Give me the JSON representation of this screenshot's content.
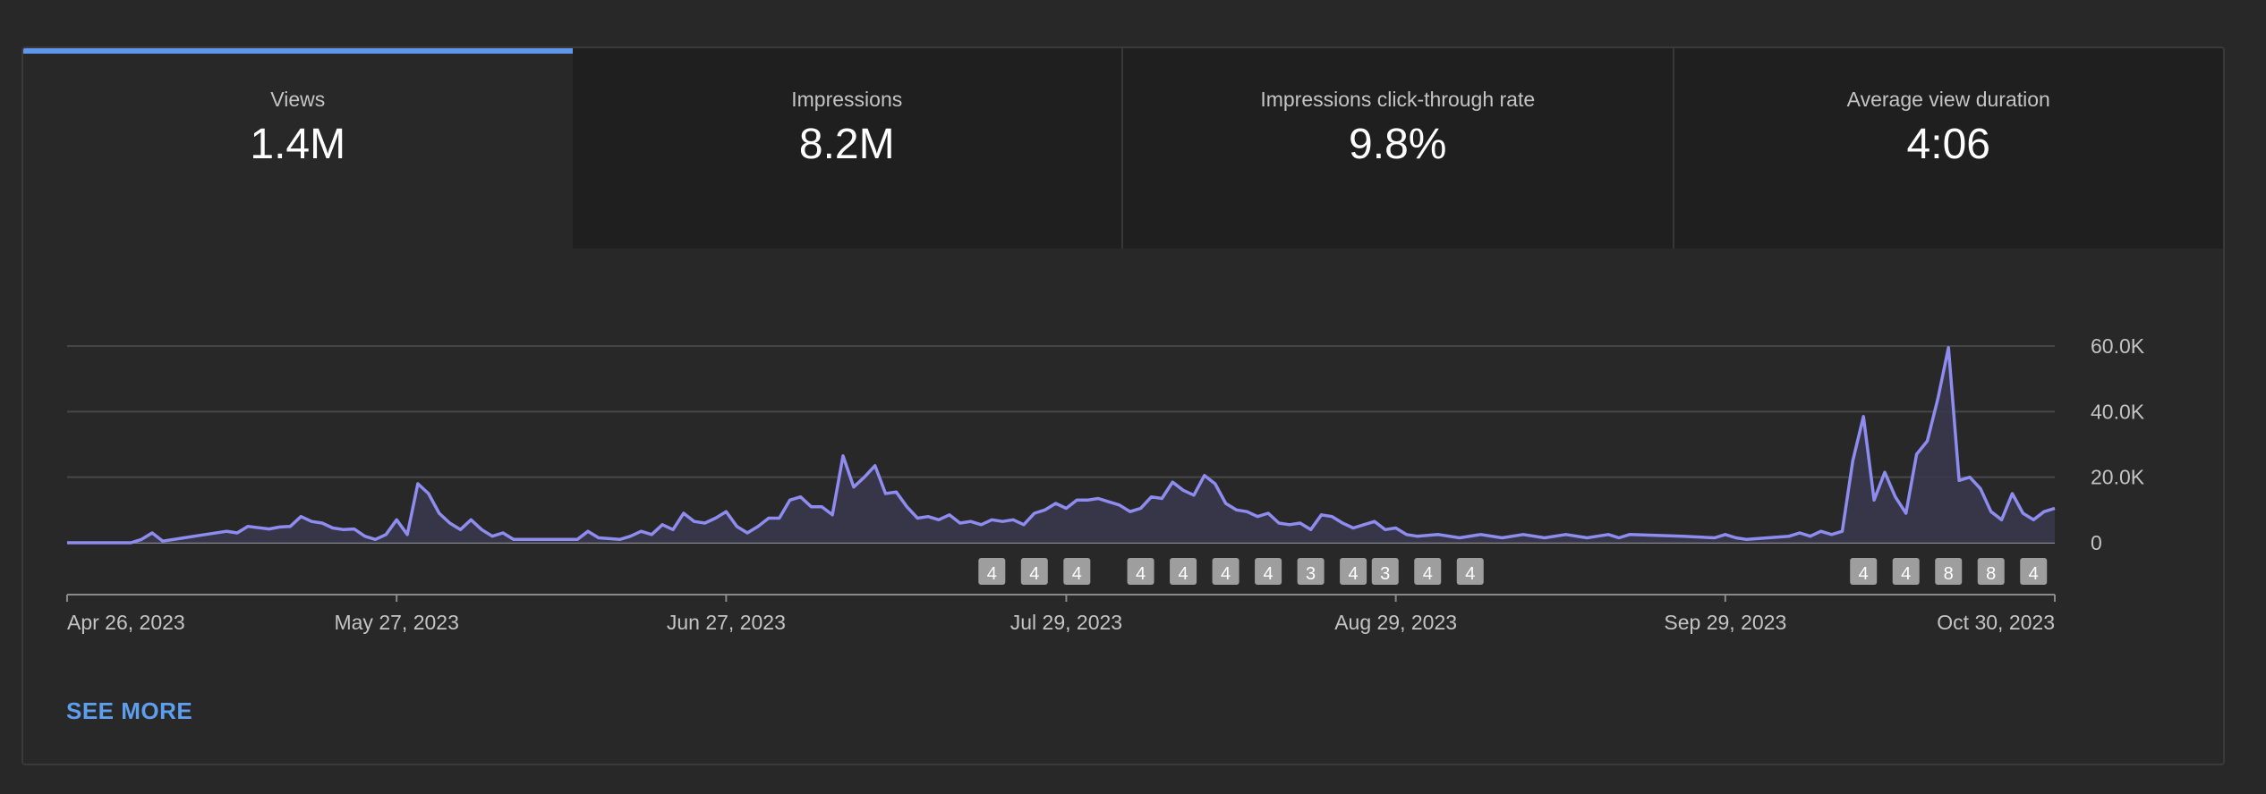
{
  "tabs": [
    {
      "label": "Views",
      "value": "1.4M",
      "active": true
    },
    {
      "label": "Impressions",
      "value": "8.2M",
      "active": false
    },
    {
      "label": "Impressions click-through rate",
      "value": "9.8%",
      "active": false
    },
    {
      "label": "Average view duration",
      "value": "4:06",
      "active": false
    }
  ],
  "see_more": "SEE MORE",
  "colors": {
    "line": "#8f8cf0",
    "fill": "#38384e",
    "accent": "#5f97ea",
    "grid": "#474747",
    "marker_bg": "#9e9e9e"
  },
  "chart_data": {
    "type": "line",
    "ylim": [
      0,
      60000
    ],
    "yticks": [
      {
        "value": 0,
        "label": "0"
      },
      {
        "value": 20000,
        "label": "20.0K"
      },
      {
        "value": 40000,
        "label": "40.0K"
      },
      {
        "value": 60000,
        "label": "60.0K"
      }
    ],
    "xrange": [
      "2023-04-26",
      "2023-10-30"
    ],
    "xticks": [
      {
        "date": "2023-04-26",
        "label": "Apr 26, 2023"
      },
      {
        "date": "2023-05-27",
        "label": "May 27, 2023"
      },
      {
        "date": "2023-06-27",
        "label": "Jun 27, 2023"
      },
      {
        "date": "2023-07-29",
        "label": "Jul 29, 2023"
      },
      {
        "date": "2023-08-29",
        "label": "Aug 29, 2023"
      },
      {
        "date": "2023-09-29",
        "label": "Sep 29, 2023"
      },
      {
        "date": "2023-10-30",
        "label": "Oct 30, 2023"
      }
    ],
    "series": [
      {
        "points": [
          [
            "2023-04-26",
            0
          ],
          [
            "2023-05-02",
            0
          ],
          [
            "2023-05-03",
            1000
          ],
          [
            "2023-05-04",
            3000
          ],
          [
            "2023-05-05",
            500
          ],
          [
            "2023-05-07",
            1500
          ],
          [
            "2023-05-09",
            2500
          ],
          [
            "2023-05-11",
            3500
          ],
          [
            "2023-05-12",
            3000
          ],
          [
            "2023-05-13",
            5000
          ],
          [
            "2023-05-15",
            4200
          ],
          [
            "2023-05-16",
            4800
          ],
          [
            "2023-05-17",
            5000
          ],
          [
            "2023-05-18",
            8000
          ],
          [
            "2023-05-19",
            6500
          ],
          [
            "2023-05-20",
            6000
          ],
          [
            "2023-05-21",
            4500
          ],
          [
            "2023-05-22",
            4000
          ],
          [
            "2023-05-23",
            4200
          ],
          [
            "2023-05-24",
            2000
          ],
          [
            "2023-05-25",
            1000
          ],
          [
            "2023-05-26",
            2500
          ],
          [
            "2023-05-27",
            7000
          ],
          [
            "2023-05-28",
            2500
          ],
          [
            "2023-05-29",
            18000
          ],
          [
            "2023-05-30",
            15000
          ],
          [
            "2023-05-31",
            9000
          ],
          [
            "2023-06-01",
            6000
          ],
          [
            "2023-06-02",
            4000
          ],
          [
            "2023-06-03",
            7000
          ],
          [
            "2023-06-04",
            4000
          ],
          [
            "2023-06-05",
            2000
          ],
          [
            "2023-06-06",
            3000
          ],
          [
            "2023-06-07",
            1000
          ],
          [
            "2023-06-13",
            1000
          ],
          [
            "2023-06-14",
            3500
          ],
          [
            "2023-06-15",
            1500
          ],
          [
            "2023-06-17",
            1000
          ],
          [
            "2023-06-18",
            2000
          ],
          [
            "2023-06-19",
            3500
          ],
          [
            "2023-06-20",
            2500
          ],
          [
            "2023-06-21",
            5500
          ],
          [
            "2023-06-22",
            4000
          ],
          [
            "2023-06-23",
            9000
          ],
          [
            "2023-06-24",
            6500
          ],
          [
            "2023-06-25",
            6000
          ],
          [
            "2023-06-26",
            7500
          ],
          [
            "2023-06-27",
            9500
          ],
          [
            "2023-06-28",
            5000
          ],
          [
            "2023-06-29",
            3000
          ],
          [
            "2023-06-30",
            5000
          ],
          [
            "2023-07-01",
            7500
          ],
          [
            "2023-07-02",
            7500
          ],
          [
            "2023-07-03",
            13000
          ],
          [
            "2023-07-04",
            14000
          ],
          [
            "2023-07-05",
            11000
          ],
          [
            "2023-07-06",
            11000
          ],
          [
            "2023-07-07",
            8500
          ],
          [
            "2023-07-08",
            26500
          ],
          [
            "2023-07-09",
            17000
          ],
          [
            "2023-07-10",
            20000
          ],
          [
            "2023-07-11",
            23500
          ],
          [
            "2023-07-12",
            15000
          ],
          [
            "2023-07-13",
            15500
          ],
          [
            "2023-07-14",
            11000
          ],
          [
            "2023-07-15",
            7500
          ],
          [
            "2023-07-16",
            8000
          ],
          [
            "2023-07-17",
            7000
          ],
          [
            "2023-07-18",
            8500
          ],
          [
            "2023-07-19",
            6000
          ],
          [
            "2023-07-20",
            6500
          ],
          [
            "2023-07-21",
            5500
          ],
          [
            "2023-07-22",
            7000
          ],
          [
            "2023-07-23",
            6500
          ],
          [
            "2023-07-24",
            7000
          ],
          [
            "2023-07-25",
            5500
          ],
          [
            "2023-07-26",
            9000
          ],
          [
            "2023-07-27",
            10000
          ],
          [
            "2023-07-28",
            12000
          ],
          [
            "2023-07-29",
            10500
          ],
          [
            "2023-07-30",
            13000
          ],
          [
            "2023-07-31",
            13000
          ],
          [
            "2023-08-01",
            13500
          ],
          [
            "2023-08-02",
            12500
          ],
          [
            "2023-08-03",
            11500
          ],
          [
            "2023-08-04",
            9500
          ],
          [
            "2023-08-05",
            10500
          ],
          [
            "2023-08-06",
            14000
          ],
          [
            "2023-08-07",
            13500
          ],
          [
            "2023-08-08",
            18500
          ],
          [
            "2023-08-09",
            16000
          ],
          [
            "2023-08-10",
            14500
          ],
          [
            "2023-08-11",
            20500
          ],
          [
            "2023-08-12",
            18000
          ],
          [
            "2023-08-13",
            12000
          ],
          [
            "2023-08-14",
            10000
          ],
          [
            "2023-08-15",
            9500
          ],
          [
            "2023-08-16",
            8000
          ],
          [
            "2023-08-17",
            9000
          ],
          [
            "2023-08-18",
            6000
          ],
          [
            "2023-08-19",
            5500
          ],
          [
            "2023-08-20",
            6000
          ],
          [
            "2023-08-21",
            4000
          ],
          [
            "2023-08-22",
            8500
          ],
          [
            "2023-08-23",
            8000
          ],
          [
            "2023-08-24",
            6000
          ],
          [
            "2023-08-25",
            4500
          ],
          [
            "2023-08-26",
            5500
          ],
          [
            "2023-08-27",
            6500
          ],
          [
            "2023-08-28",
            4000
          ],
          [
            "2023-08-29",
            4500
          ],
          [
            "2023-08-30",
            2500
          ],
          [
            "2023-08-31",
            2000
          ],
          [
            "2023-09-02",
            2500
          ],
          [
            "2023-09-04",
            1500
          ],
          [
            "2023-09-06",
            2500
          ],
          [
            "2023-09-08",
            1500
          ],
          [
            "2023-09-10",
            2500
          ],
          [
            "2023-09-12",
            1500
          ],
          [
            "2023-09-14",
            2500
          ],
          [
            "2023-09-16",
            1500
          ],
          [
            "2023-09-18",
            2500
          ],
          [
            "2023-09-19",
            1500
          ],
          [
            "2023-09-20",
            2500
          ],
          [
            "2023-09-25",
            2000
          ],
          [
            "2023-09-28",
            1500
          ],
          [
            "2023-09-29",
            2500
          ],
          [
            "2023-09-30",
            1500
          ],
          [
            "2023-10-01",
            1000
          ],
          [
            "2023-10-03",
            1500
          ],
          [
            "2023-10-05",
            2000
          ],
          [
            "2023-10-06",
            3000
          ],
          [
            "2023-10-07",
            2000
          ],
          [
            "2023-10-08",
            3500
          ],
          [
            "2023-10-09",
            2500
          ],
          [
            "2023-10-10",
            3500
          ],
          [
            "2023-10-11",
            25000
          ],
          [
            "2023-10-12",
            38500
          ],
          [
            "2023-10-13",
            13000
          ],
          [
            "2023-10-14",
            21500
          ],
          [
            "2023-10-15",
            14000
          ],
          [
            "2023-10-16",
            9000
          ],
          [
            "2023-10-17",
            27000
          ],
          [
            "2023-10-18",
            31000
          ],
          [
            "2023-10-19",
            44000
          ],
          [
            "2023-10-20",
            59500
          ],
          [
            "2023-10-21",
            19000
          ],
          [
            "2023-10-22",
            20000
          ],
          [
            "2023-10-23",
            16500
          ],
          [
            "2023-10-24",
            9500
          ],
          [
            "2023-10-25",
            7000
          ],
          [
            "2023-10-26",
            15000
          ],
          [
            "2023-10-27",
            9000
          ],
          [
            "2023-10-28",
            7000
          ],
          [
            "2023-10-29",
            9500
          ],
          [
            "2023-10-30",
            10500
          ]
        ]
      }
    ],
    "markers": [
      {
        "date": "2023-07-22",
        "label": "4"
      },
      {
        "date": "2023-07-26",
        "label": "4"
      },
      {
        "date": "2023-07-30",
        "label": "4"
      },
      {
        "date": "2023-08-05",
        "label": "4"
      },
      {
        "date": "2023-08-09",
        "label": "4"
      },
      {
        "date": "2023-08-13",
        "label": "4"
      },
      {
        "date": "2023-08-17",
        "label": "4"
      },
      {
        "date": "2023-08-21",
        "label": "3"
      },
      {
        "date": "2023-08-25",
        "label": "4"
      },
      {
        "date": "2023-08-28",
        "label": "3"
      },
      {
        "date": "2023-09-01",
        "label": "4"
      },
      {
        "date": "2023-09-05",
        "label": "4"
      },
      {
        "date": "2023-10-12",
        "label": "4"
      },
      {
        "date": "2023-10-16",
        "label": "4"
      },
      {
        "date": "2023-10-20",
        "label": "8"
      },
      {
        "date": "2023-10-24",
        "label": "8"
      },
      {
        "date": "2023-10-28",
        "label": "4"
      }
    ]
  }
}
